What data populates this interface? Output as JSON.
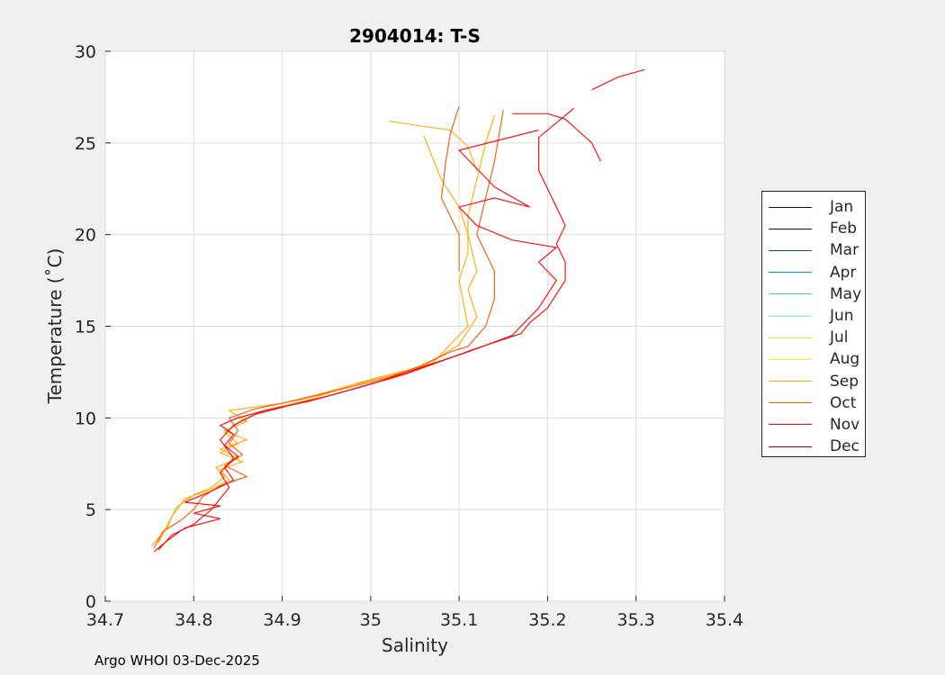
{
  "chart_data": {
    "type": "line",
    "title": "2904014:  T-S",
    "xlabel": "Salinity",
    "ylabel": "Temperature (˚C)",
    "xlim": [
      34.7,
      35.4
    ],
    "ylim": [
      0,
      30
    ],
    "xticks": [
      "34.7",
      "34.8",
      "34.9",
      "35",
      "35.1",
      "35.2",
      "35.3",
      "35.4"
    ],
    "yticks": [
      "0",
      "5",
      "10",
      "15",
      "20",
      "25",
      "30"
    ],
    "grid": true,
    "legend": {
      "placement": "right-outside",
      "entries": [
        {
          "label": "Jan",
          "color": "#0000aa"
        },
        {
          "label": "Feb",
          "color": "#0000cc"
        },
        {
          "label": "Mar",
          "color": "#0044dd"
        },
        {
          "label": "Apr",
          "color": "#0099dd"
        },
        {
          "label": "May",
          "color": "#22dddd"
        },
        {
          "label": "Jun",
          "color": "#66ff99"
        },
        {
          "label": "Jul",
          "color": "#aaff33"
        },
        {
          "label": "Aug",
          "color": "#ffee00"
        },
        {
          "label": "Sep",
          "color": "#ffaa00"
        },
        {
          "label": "Oct",
          "color": "#ff5500"
        },
        {
          "label": "Nov",
          "color": "#ff0000"
        },
        {
          "label": "Dec",
          "color": "#990000"
        }
      ]
    },
    "series": [
      {
        "name": "Sep",
        "color": "#ffaa00",
        "points": [
          [
            34.752,
            3.0
          ],
          [
            34.77,
            4.0
          ],
          [
            34.78,
            5.1
          ],
          [
            34.8,
            5.8
          ],
          [
            34.82,
            6.2
          ],
          [
            34.835,
            6.8
          ],
          [
            34.825,
            7.3
          ],
          [
            34.85,
            7.8
          ],
          [
            34.83,
            8.3
          ],
          [
            34.86,
            8.8
          ],
          [
            34.835,
            9.3
          ],
          [
            34.86,
            9.8
          ],
          [
            34.84,
            10.4
          ],
          [
            34.9,
            10.8
          ],
          [
            34.95,
            11.4
          ],
          [
            35.0,
            12.1
          ],
          [
            35.05,
            12.7
          ],
          [
            35.08,
            13.4
          ],
          [
            35.1,
            14.0
          ],
          [
            35.12,
            15.5
          ],
          [
            35.11,
            17.0
          ],
          [
            35.12,
            18.0
          ],
          [
            35.11,
            20.0
          ],
          [
            35.1,
            21.5
          ],
          [
            35.08,
            23.0
          ],
          [
            35.06,
            25.4
          ]
        ]
      },
      {
        "name": "Sep",
        "color": "#ffaa00",
        "points": [
          [
            34.76,
            3.2
          ],
          [
            34.775,
            4.6
          ],
          [
            34.79,
            5.6
          ],
          [
            34.82,
            6.1
          ],
          [
            34.84,
            6.6
          ],
          [
            34.83,
            7.2
          ],
          [
            34.855,
            7.6
          ],
          [
            34.83,
            8.1
          ],
          [
            34.85,
            8.6
          ],
          [
            34.835,
            9.2
          ],
          [
            34.855,
            9.9
          ],
          [
            34.88,
            10.4
          ],
          [
            34.93,
            11.0
          ],
          [
            34.98,
            11.8
          ],
          [
            35.03,
            12.4
          ],
          [
            35.07,
            13.0
          ],
          [
            35.09,
            14.0
          ],
          [
            35.11,
            15.0
          ],
          [
            35.1,
            17.5
          ],
          [
            35.11,
            19.0
          ],
          [
            35.11,
            21.0
          ],
          [
            35.12,
            23.0
          ],
          [
            35.13,
            25.0
          ],
          [
            35.14,
            26.5
          ]
        ]
      },
      {
        "name": "Sep",
        "color": "#ffaa00",
        "points": [
          [
            35.02,
            26.2
          ],
          [
            35.06,
            25.9
          ],
          [
            35.09,
            25.7
          ],
          [
            35.11,
            24.8
          ],
          [
            35.12,
            23.5
          ]
        ]
      },
      {
        "name": "Oct",
        "color": "#ff5500",
        "points": [
          [
            34.755,
            2.9
          ],
          [
            34.765,
            3.8
          ],
          [
            34.785,
            4.4
          ],
          [
            34.8,
            5.0
          ],
          [
            34.81,
            5.7
          ],
          [
            34.83,
            6.3
          ],
          [
            34.86,
            6.8
          ],
          [
            34.835,
            7.4
          ],
          [
            34.855,
            8.0
          ],
          [
            34.84,
            8.6
          ],
          [
            34.85,
            9.3
          ],
          [
            34.84,
            10.0
          ],
          [
            34.87,
            10.5
          ],
          [
            34.92,
            11.0
          ],
          [
            34.97,
            11.6
          ],
          [
            35.02,
            12.2
          ],
          [
            35.06,
            12.9
          ],
          [
            35.09,
            13.6
          ],
          [
            35.11,
            13.9
          ],
          [
            35.13,
            15.0
          ],
          [
            35.14,
            16.5
          ],
          [
            35.14,
            18.0
          ],
          [
            35.12,
            20.0
          ],
          [
            35.13,
            22.0
          ],
          [
            35.14,
            24.0
          ],
          [
            35.15,
            26.8
          ]
        ]
      },
      {
        "name": "Oct",
        "color": "#ff5500",
        "points": [
          [
            35.1,
            18.0
          ],
          [
            35.1,
            20.0
          ],
          [
            35.08,
            22.0
          ],
          [
            35.085,
            24.0
          ],
          [
            35.09,
            25.5
          ],
          [
            35.1,
            27.0
          ]
        ]
      },
      {
        "name": "Nov",
        "color": "#ff0000",
        "points": [
          [
            34.755,
            2.7
          ],
          [
            34.77,
            3.3
          ],
          [
            34.79,
            4.0
          ],
          [
            34.83,
            4.5
          ],
          [
            34.8,
            4.8
          ],
          [
            34.83,
            5.2
          ],
          [
            34.79,
            5.4
          ],
          [
            34.82,
            6.0
          ],
          [
            34.845,
            6.6
          ],
          [
            34.835,
            7.3
          ],
          [
            34.85,
            7.9
          ],
          [
            34.835,
            8.5
          ],
          [
            34.845,
            9.1
          ],
          [
            34.83,
            9.6
          ],
          [
            34.85,
            10.0
          ],
          [
            34.88,
            10.4
          ],
          [
            34.93,
            10.9
          ],
          [
            34.99,
            11.7
          ],
          [
            35.04,
            12.4
          ],
          [
            35.08,
            13.1
          ],
          [
            35.12,
            13.8
          ],
          [
            35.17,
            14.6
          ],
          [
            35.18,
            15.2
          ],
          [
            35.2,
            16.0
          ],
          [
            35.22,
            17.5
          ],
          [
            35.22,
            18.5
          ],
          [
            35.21,
            19.5
          ],
          [
            35.22,
            20.5
          ],
          [
            35.21,
            21.5
          ],
          [
            35.2,
            22.5
          ],
          [
            35.19,
            23.5
          ],
          [
            35.19,
            24.5
          ],
          [
            35.19,
            25.3
          ],
          [
            35.23,
            26.9
          ]
        ]
      },
      {
        "name": "Nov",
        "color": "#ff0000",
        "points": [
          [
            34.76,
            2.8
          ],
          [
            34.775,
            3.6
          ],
          [
            34.8,
            4.2
          ],
          [
            34.82,
            5.0
          ],
          [
            34.84,
            6.2
          ],
          [
            34.83,
            7.0
          ],
          [
            34.845,
            7.8
          ],
          [
            34.83,
            8.8
          ],
          [
            34.845,
            9.6
          ],
          [
            34.87,
            10.2
          ],
          [
            34.91,
            10.7
          ],
          [
            34.96,
            11.3
          ],
          [
            35.01,
            12.0
          ],
          [
            35.06,
            12.8
          ],
          [
            35.11,
            13.6
          ],
          [
            35.16,
            14.5
          ],
          [
            35.19,
            16.0
          ],
          [
            35.21,
            17.5
          ],
          [
            35.19,
            18.5
          ],
          [
            35.21,
            19.3
          ],
          [
            35.16,
            19.7
          ],
          [
            35.12,
            20.5
          ],
          [
            35.1,
            21.5
          ],
          [
            35.14,
            22.0
          ],
          [
            35.18,
            21.5
          ],
          [
            35.14,
            22.6
          ],
          [
            35.1,
            24.6
          ],
          [
            35.19,
            25.7
          ]
        ]
      },
      {
        "name": "Nov",
        "color": "#ff0000",
        "points": [
          [
            35.26,
            24.0
          ],
          [
            35.25,
            25.0
          ],
          [
            35.22,
            26.3
          ],
          [
            35.2,
            26.6
          ],
          [
            35.16,
            26.6
          ]
        ]
      },
      {
        "name": "Nov",
        "color": "#ff0000",
        "points": [
          [
            35.25,
            27.9
          ],
          [
            35.28,
            28.6
          ],
          [
            35.31,
            29.0
          ]
        ]
      }
    ]
  },
  "footer": "Argo WHOI 03-Dec-2025"
}
